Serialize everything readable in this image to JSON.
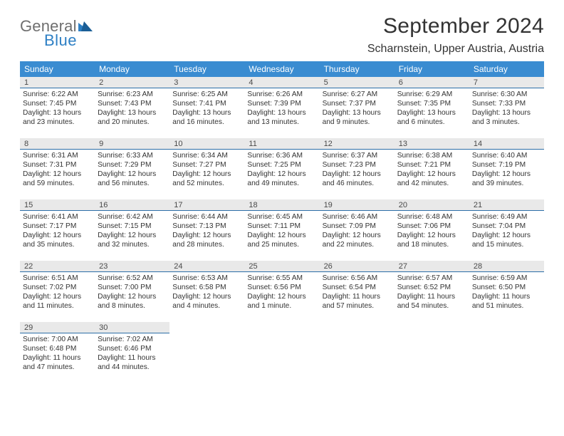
{
  "logo": {
    "word1": "General",
    "word2": "Blue"
  },
  "title": "September 2024",
  "location": "Scharnstein, Upper Austria, Austria",
  "styling": {
    "header_bg": "#3a8cd1",
    "header_text": "#ffffff",
    "daynum_bg": "#e9e9e9",
    "daynum_border": "#2d6fa8",
    "body_text": "#333333",
    "logo_gray": "#6f6f6f",
    "logo_blue": "#2d7fc4",
    "header_fontsize": 12,
    "title_fontsize": 30,
    "location_fontsize": 16,
    "daynum_fontsize": 11,
    "cell_fontsize": 10.2
  },
  "day_headers": [
    "Sunday",
    "Monday",
    "Tuesday",
    "Wednesday",
    "Thursday",
    "Friday",
    "Saturday"
  ],
  "weeks": [
    [
      {
        "num": "1",
        "sunrise": "Sunrise: 6:22 AM",
        "sunset": "Sunset: 7:45 PM",
        "daylight": "Daylight: 13 hours and 23 minutes."
      },
      {
        "num": "2",
        "sunrise": "Sunrise: 6:23 AM",
        "sunset": "Sunset: 7:43 PM",
        "daylight": "Daylight: 13 hours and 20 minutes."
      },
      {
        "num": "3",
        "sunrise": "Sunrise: 6:25 AM",
        "sunset": "Sunset: 7:41 PM",
        "daylight": "Daylight: 13 hours and 16 minutes."
      },
      {
        "num": "4",
        "sunrise": "Sunrise: 6:26 AM",
        "sunset": "Sunset: 7:39 PM",
        "daylight": "Daylight: 13 hours and 13 minutes."
      },
      {
        "num": "5",
        "sunrise": "Sunrise: 6:27 AM",
        "sunset": "Sunset: 7:37 PM",
        "daylight": "Daylight: 13 hours and 9 minutes."
      },
      {
        "num": "6",
        "sunrise": "Sunrise: 6:29 AM",
        "sunset": "Sunset: 7:35 PM",
        "daylight": "Daylight: 13 hours and 6 minutes."
      },
      {
        "num": "7",
        "sunrise": "Sunrise: 6:30 AM",
        "sunset": "Sunset: 7:33 PM",
        "daylight": "Daylight: 13 hours and 3 minutes."
      }
    ],
    [
      {
        "num": "8",
        "sunrise": "Sunrise: 6:31 AM",
        "sunset": "Sunset: 7:31 PM",
        "daylight": "Daylight: 12 hours and 59 minutes."
      },
      {
        "num": "9",
        "sunrise": "Sunrise: 6:33 AM",
        "sunset": "Sunset: 7:29 PM",
        "daylight": "Daylight: 12 hours and 56 minutes."
      },
      {
        "num": "10",
        "sunrise": "Sunrise: 6:34 AM",
        "sunset": "Sunset: 7:27 PM",
        "daylight": "Daylight: 12 hours and 52 minutes."
      },
      {
        "num": "11",
        "sunrise": "Sunrise: 6:36 AM",
        "sunset": "Sunset: 7:25 PM",
        "daylight": "Daylight: 12 hours and 49 minutes."
      },
      {
        "num": "12",
        "sunrise": "Sunrise: 6:37 AM",
        "sunset": "Sunset: 7:23 PM",
        "daylight": "Daylight: 12 hours and 46 minutes."
      },
      {
        "num": "13",
        "sunrise": "Sunrise: 6:38 AM",
        "sunset": "Sunset: 7:21 PM",
        "daylight": "Daylight: 12 hours and 42 minutes."
      },
      {
        "num": "14",
        "sunrise": "Sunrise: 6:40 AM",
        "sunset": "Sunset: 7:19 PM",
        "daylight": "Daylight: 12 hours and 39 minutes."
      }
    ],
    [
      {
        "num": "15",
        "sunrise": "Sunrise: 6:41 AM",
        "sunset": "Sunset: 7:17 PM",
        "daylight": "Daylight: 12 hours and 35 minutes."
      },
      {
        "num": "16",
        "sunrise": "Sunrise: 6:42 AM",
        "sunset": "Sunset: 7:15 PM",
        "daylight": "Daylight: 12 hours and 32 minutes."
      },
      {
        "num": "17",
        "sunrise": "Sunrise: 6:44 AM",
        "sunset": "Sunset: 7:13 PM",
        "daylight": "Daylight: 12 hours and 28 minutes."
      },
      {
        "num": "18",
        "sunrise": "Sunrise: 6:45 AM",
        "sunset": "Sunset: 7:11 PM",
        "daylight": "Daylight: 12 hours and 25 minutes."
      },
      {
        "num": "19",
        "sunrise": "Sunrise: 6:46 AM",
        "sunset": "Sunset: 7:09 PM",
        "daylight": "Daylight: 12 hours and 22 minutes."
      },
      {
        "num": "20",
        "sunrise": "Sunrise: 6:48 AM",
        "sunset": "Sunset: 7:06 PM",
        "daylight": "Daylight: 12 hours and 18 minutes."
      },
      {
        "num": "21",
        "sunrise": "Sunrise: 6:49 AM",
        "sunset": "Sunset: 7:04 PM",
        "daylight": "Daylight: 12 hours and 15 minutes."
      }
    ],
    [
      {
        "num": "22",
        "sunrise": "Sunrise: 6:51 AM",
        "sunset": "Sunset: 7:02 PM",
        "daylight": "Daylight: 12 hours and 11 minutes."
      },
      {
        "num": "23",
        "sunrise": "Sunrise: 6:52 AM",
        "sunset": "Sunset: 7:00 PM",
        "daylight": "Daylight: 12 hours and 8 minutes."
      },
      {
        "num": "24",
        "sunrise": "Sunrise: 6:53 AM",
        "sunset": "Sunset: 6:58 PM",
        "daylight": "Daylight: 12 hours and 4 minutes."
      },
      {
        "num": "25",
        "sunrise": "Sunrise: 6:55 AM",
        "sunset": "Sunset: 6:56 PM",
        "daylight": "Daylight: 12 hours and 1 minute."
      },
      {
        "num": "26",
        "sunrise": "Sunrise: 6:56 AM",
        "sunset": "Sunset: 6:54 PM",
        "daylight": "Daylight: 11 hours and 57 minutes."
      },
      {
        "num": "27",
        "sunrise": "Sunrise: 6:57 AM",
        "sunset": "Sunset: 6:52 PM",
        "daylight": "Daylight: 11 hours and 54 minutes."
      },
      {
        "num": "28",
        "sunrise": "Sunrise: 6:59 AM",
        "sunset": "Sunset: 6:50 PM",
        "daylight": "Daylight: 11 hours and 51 minutes."
      }
    ],
    [
      {
        "num": "29",
        "sunrise": "Sunrise: 7:00 AM",
        "sunset": "Sunset: 6:48 PM",
        "daylight": "Daylight: 11 hours and 47 minutes."
      },
      {
        "num": "30",
        "sunrise": "Sunrise: 7:02 AM",
        "sunset": "Sunset: 6:46 PM",
        "daylight": "Daylight: 11 hours and 44 minutes."
      },
      null,
      null,
      null,
      null,
      null
    ]
  ]
}
